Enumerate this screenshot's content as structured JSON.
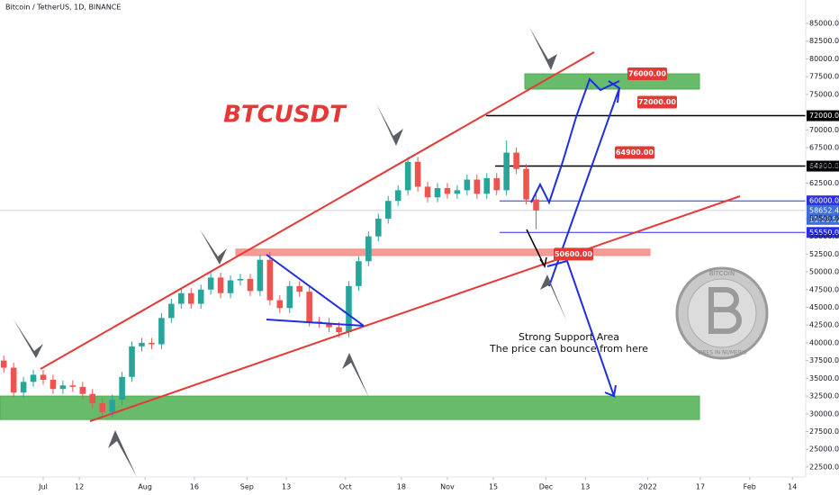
{
  "chart_data": {
    "type": "candlestick",
    "title": "Bitcoin / TetherUS, 1D, BINANCE",
    "heading": "BTCUSDT",
    "annotation": [
      "Strong Support Area",
      "The price can bounce from here"
    ],
    "coin_text": [
      "BITCOIN",
      "VIRES IN NUMERIS"
    ],
    "x": [
      -12,
      -9,
      -6,
      -3,
      0,
      3,
      6,
      9,
      12,
      15,
      18,
      21,
      24,
      27,
      30,
      33,
      36,
      39,
      42,
      45,
      48,
      51,
      54,
      57,
      60,
      63,
      66,
      69,
      72,
      75,
      78,
      81,
      84,
      87,
      90,
      93,
      96,
      99,
      102,
      105,
      108,
      111,
      114,
      117,
      120,
      123,
      126,
      129,
      132,
      135,
      138,
      141,
      144,
      147,
      150
    ],
    "open": [
      37500,
      36500,
      33000,
      34500,
      35500,
      34800,
      33500,
      34000,
      33800,
      32800,
      31500,
      30200,
      32000,
      35200,
      39500,
      40000,
      39800,
      43500,
      45500,
      47000,
      45500,
      47500,
      49200,
      47000,
      48800,
      49000,
      47300,
      51700,
      46000,
      44900,
      48000,
      47200,
      43000,
      42800,
      42200,
      41500,
      48000,
      51500,
      55000,
      57500,
      60000,
      61500,
      65500,
      62000,
      60500,
      61800,
      61000,
      61500,
      63000,
      61000,
      63200,
      61500,
      66800,
      64500,
      60200
    ],
    "high": [
      38200,
      37200,
      35200,
      36200,
      36200,
      35500,
      34700,
      34700,
      34500,
      33500,
      32200,
      32700,
      35900,
      40200,
      40700,
      40700,
      44200,
      46200,
      47700,
      47700,
      48200,
      49900,
      49900,
      49500,
      49700,
      49700,
      52400,
      52800,
      46700,
      48700,
      48700,
      47900,
      43700,
      43500,
      42900,
      48700,
      52200,
      55700,
      58200,
      60700,
      62200,
      66200,
      66200,
      62700,
      62500,
      62500,
      62200,
      63700,
      63700,
      63900,
      63900,
      68500,
      67500,
      65200,
      60900
    ],
    "low": [
      35800,
      32300,
      32300,
      33800,
      34100,
      32800,
      32800,
      33100,
      32100,
      30800,
      29500,
      29500,
      31300,
      34500,
      38800,
      39100,
      39100,
      42800,
      44800,
      44800,
      44800,
      46800,
      46300,
      46300,
      48100,
      46600,
      46600,
      45300,
      44200,
      44200,
      46500,
      42300,
      42100,
      41500,
      40800,
      40800,
      47300,
      50800,
      54300,
      56800,
      59300,
      60800,
      61300,
      59800,
      59800,
      60300,
      60300,
      60800,
      60300,
      60300,
      60800,
      60800,
      63800,
      59500,
      56000
    ],
    "close": [
      36500,
      33000,
      34500,
      35500,
      34800,
      33500,
      34000,
      33800,
      32800,
      31500,
      30200,
      32000,
      35200,
      39500,
      40000,
      39800,
      43500,
      45500,
      47000,
      45500,
      47500,
      49200,
      47000,
      48800,
      49000,
      47300,
      51700,
      46000,
      44900,
      48000,
      47200,
      43000,
      42800,
      42200,
      41500,
      48000,
      51500,
      55000,
      57500,
      60000,
      61500,
      65500,
      62000,
      60500,
      61800,
      61000,
      61500,
      63000,
      61000,
      63200,
      61500,
      66800,
      64500,
      60200,
      58650
    ],
    "up_color": "#26a69a",
    "down_color": "#ef5350",
    "xlim": [
      -13.15,
      232.05
    ],
    "xticks": [
      {
        "value": 0,
        "label": "Jul"
      },
      {
        "value": 11,
        "label": "12"
      },
      {
        "value": 31,
        "label": "Aug"
      },
      {
        "value": 46,
        "label": "16"
      },
      {
        "value": 62,
        "label": "Sep"
      },
      {
        "value": 74,
        "label": "13"
      },
      {
        "value": 92,
        "label": "Oct"
      },
      {
        "value": 109,
        "label": "18"
      },
      {
        "value": 123,
        "label": "Nov"
      },
      {
        "value": 137,
        "label": "15"
      },
      {
        "value": 153,
        "label": "Dec"
      },
      {
        "value": 165,
        "label": "13"
      },
      {
        "value": 184,
        "label": "2022"
      },
      {
        "value": 200,
        "label": "17"
      },
      {
        "value": 215,
        "label": "Feb"
      },
      {
        "value": 228,
        "label": "14"
      }
    ],
    "ylim": [
      21100,
      88300
    ],
    "yticks": [
      {
        "value": 22500,
        "label": "22500.00"
      },
      {
        "value": 25000,
        "label": "25000.00"
      },
      {
        "value": 27500,
        "label": "27500.00"
      },
      {
        "value": 30000,
        "label": "30000.00"
      },
      {
        "value": 32500,
        "label": "32500.00"
      },
      {
        "value": 35000,
        "label": "35000.00"
      },
      {
        "value": 37500,
        "label": "37500.00"
      },
      {
        "value": 40000,
        "label": "40000.00"
      },
      {
        "value": 42500,
        "label": "42500.00"
      },
      {
        "value": 45000,
        "label": "45000.00"
      },
      {
        "value": 47500,
        "label": "47500.00"
      },
      {
        "value": 50000,
        "label": "50000.00"
      },
      {
        "value": 52500,
        "label": "52500.00"
      },
      {
        "value": 55000,
        "label": "55000.00"
      },
      {
        "value": 57500,
        "label": "57500.00"
      },
      {
        "value": 62500,
        "label": "62500.00"
      },
      {
        "value": 65000,
        "label": "65000.00"
      },
      {
        "value": 67500,
        "label": "67500.00"
      },
      {
        "value": 70000,
        "label": "70000.00"
      },
      {
        "value": 75000,
        "label": "75000.00"
      },
      {
        "value": 77500,
        "label": "77500.00"
      },
      {
        "value": 80000,
        "label": "80000.00"
      },
      {
        "value": 82500,
        "label": "82500.00"
      },
      {
        "value": 85000,
        "label": "85000.00"
      }
    ],
    "levels": [
      {
        "value": 72000,
        "label": "72000.00",
        "color": "#000000"
      },
      {
        "value": 64900,
        "label": "64900.00",
        "color": "#000000"
      },
      {
        "value": 60000,
        "label": "60000.00",
        "color": "#2a2ee8"
      },
      {
        "value": 55550,
        "label": "55550.00",
        "color": "#2a2ee8"
      }
    ],
    "last_price": {
      "value": 58652.48,
      "label": "58652.48",
      "countdown": "11:03:52",
      "color": "#3d6fd6"
    },
    "callouts": [
      {
        "value": 76000,
        "label": "76000.00"
      },
      {
        "value": 72000,
        "label": "72000.00"
      },
      {
        "value": 64900,
        "label": "64900.00"
      },
      {
        "value": 50600,
        "label": "50600.00"
      }
    ],
    "zones": [
      {
        "range": [
          29200,
          32500
        ],
        "color": "#4caf50"
      },
      {
        "range": [
          75750,
          77900
        ],
        "color": "#4caf50"
      },
      {
        "range": [
          52300,
          53200
        ],
        "color": "#f28b82"
      }
    ]
  }
}
